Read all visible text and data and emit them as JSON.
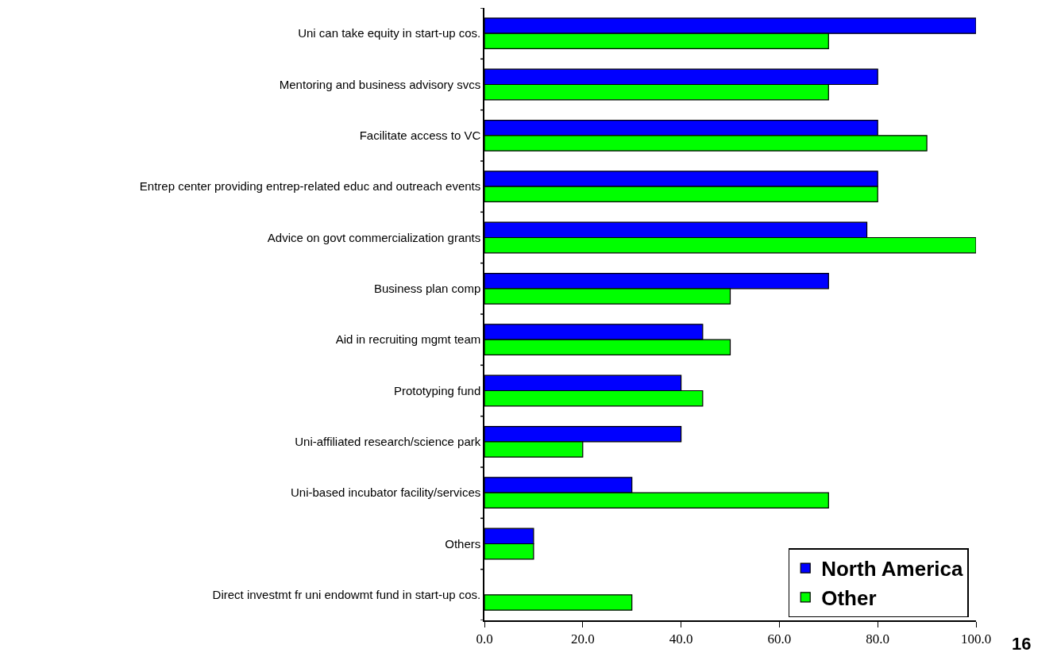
{
  "chart_data": {
    "type": "bar",
    "orientation": "horizontal",
    "categories": [
      "Uni can take equity in start-up cos.",
      "Mentoring and business advisory svcs",
      "Facilitate access to VC",
      "Entrep center providing entrep-related educ and outreach events",
      "Advice on govt commercialization grants",
      "Business plan comp",
      "Aid in recruiting mgmt team",
      "Prototyping fund",
      "Uni-affiliated research/science park",
      "Uni-based incubator facility/services",
      "Others",
      "Direct investmt fr uni endowmt fund in start-up cos."
    ],
    "series": [
      {
        "name": "North America",
        "color": "#0000ff",
        "values": [
          100,
          80,
          80,
          80,
          77.8,
          70,
          44.4,
          40,
          40,
          30,
          10,
          null
        ]
      },
      {
        "name": "Other",
        "color": "#00ff00",
        "values": [
          70,
          70,
          90,
          80,
          100,
          50,
          50,
          44.4,
          20,
          70,
          10,
          30
        ]
      }
    ],
    "xlim": [
      0,
      100
    ],
    "xticks": [
      {
        "value": 0,
        "label": "0.0"
      },
      {
        "value": 20,
        "label": "20.0"
      },
      {
        "value": 40,
        "label": "40.0"
      },
      {
        "value": 60,
        "label": "60.0"
      },
      {
        "value": 80,
        "label": "80.0"
      },
      {
        "value": 100,
        "label": "100.0"
      }
    ],
    "grid": false,
    "legend": "bottom right",
    "annotations": [
      "16"
    ]
  }
}
